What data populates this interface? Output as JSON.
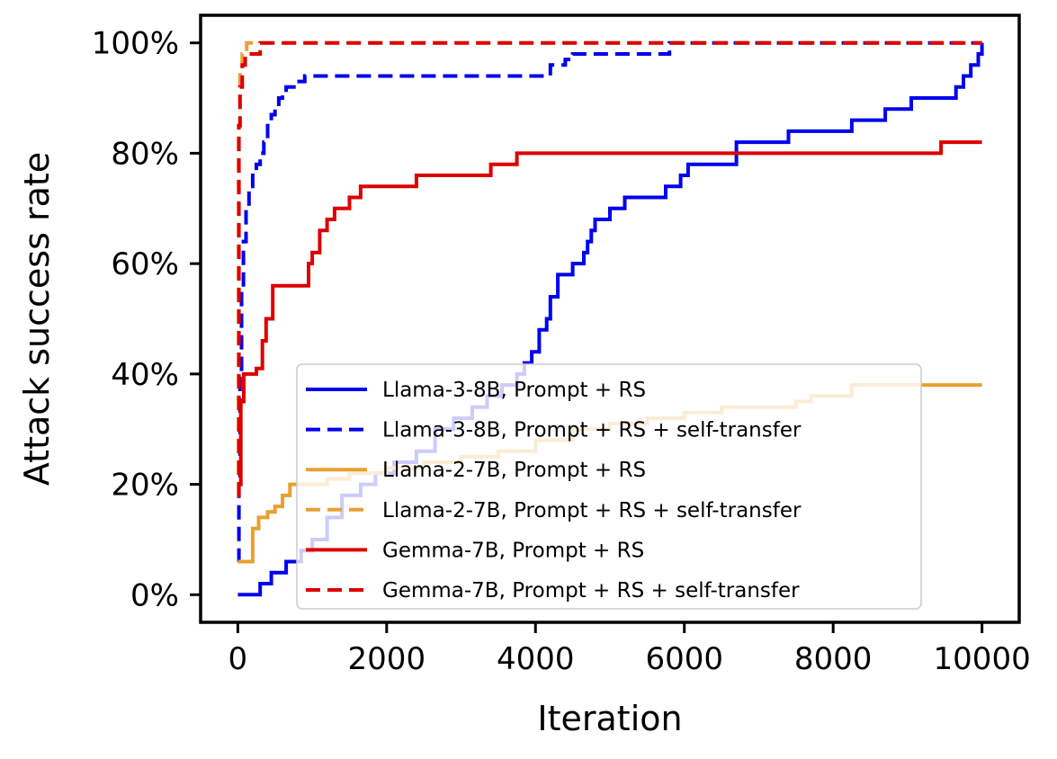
{
  "chart_data": {
    "type": "line",
    "xlabel": "Iteration",
    "ylabel": "Attack success rate",
    "xlim": [
      -500,
      10500
    ],
    "ylim": [
      -0.05,
      1.05
    ],
    "x_ticks": [
      0,
      2000,
      4000,
      6000,
      8000,
      10000
    ],
    "x_tick_labels": [
      "0",
      "2000",
      "4000",
      "6000",
      "8000",
      "10000"
    ],
    "y_ticks": [
      0,
      0.2,
      0.4,
      0.6,
      0.8,
      1.0
    ],
    "y_tick_labels": [
      "0%",
      "20%",
      "40%",
      "60%",
      "80%",
      "100%"
    ],
    "grid": false,
    "legend": {
      "placement": "lower-right",
      "entries": [
        "Llama-3-8B, Prompt + RS",
        "Llama-3-8B, Prompt + RS + self-transfer",
        "Llama-2-7B, Prompt + RS",
        "Llama-2-7B, Prompt + RS + self-transfer",
        "Gemma-7B, Prompt + RS",
        "Gemma-7B, Prompt + RS + self-transfer"
      ]
    },
    "series": [
      {
        "name": "Llama-3-8B, Prompt + RS",
        "color": "#0000ee",
        "dash": "solid",
        "x": [
          0,
          300,
          450,
          650,
          850,
          1000,
          1200,
          1400,
          1650,
          1850,
          2100,
          2400,
          2650,
          2900,
          3150,
          3350,
          3550,
          3750,
          3850,
          3950,
          4050,
          4150,
          4200,
          4300,
          4500,
          4650,
          4700,
          4750,
          4800,
          4900,
          5000,
          5200,
          5400,
          5750,
          5950,
          6050,
          6300,
          6700,
          6950,
          7400,
          7700,
          8000,
          8250,
          8500,
          8700,
          8900,
          9050,
          9200,
          9650,
          9750,
          9850,
          9950,
          10000
        ],
        "y": [
          0,
          0.02,
          0.04,
          0.06,
          0.08,
          0.1,
          0.14,
          0.18,
          0.2,
          0.22,
          0.24,
          0.26,
          0.3,
          0.32,
          0.34,
          0.36,
          0.38,
          0.4,
          0.42,
          0.44,
          0.48,
          0.5,
          0.54,
          0.58,
          0.6,
          0.62,
          0.64,
          0.66,
          0.68,
          0.68,
          0.7,
          0.72,
          0.72,
          0.74,
          0.76,
          0.78,
          0.78,
          0.82,
          0.82,
          0.84,
          0.84,
          0.84,
          0.86,
          0.86,
          0.88,
          0.88,
          0.9,
          0.9,
          0.92,
          0.94,
          0.96,
          0.98,
          1.0
        ]
      },
      {
        "name": "Llama-3-8B, Prompt + RS + self-transfer",
        "color": "#0000ee",
        "dash": "dashed",
        "x": [
          0,
          15,
          30,
          50,
          75,
          110,
          150,
          200,
          250,
          300,
          350,
          400,
          450,
          500,
          550,
          600,
          650,
          700,
          800,
          900,
          1500,
          2500,
          3500,
          4100,
          4200,
          4400,
          4500,
          5000,
          5500,
          5700,
          5800,
          6500,
          8000,
          9500,
          10000
        ],
        "y": [
          0.06,
          0.2,
          0.4,
          0.55,
          0.64,
          0.7,
          0.74,
          0.76,
          0.78,
          0.8,
          0.82,
          0.85,
          0.87,
          0.88,
          0.9,
          0.91,
          0.92,
          0.92,
          0.93,
          0.94,
          0.94,
          0.94,
          0.94,
          0.94,
          0.96,
          0.97,
          0.98,
          0.98,
          0.98,
          0.98,
          1.0,
          1.0,
          1.0,
          1.0,
          1.0
        ]
      },
      {
        "name": "Llama-2-7B, Prompt + RS",
        "color": "#e8a030",
        "dash": "solid",
        "x": [
          0,
          200,
          280,
          400,
          500,
          600,
          700,
          900,
          1200,
          1500,
          2000,
          2500,
          3000,
          3500,
          4000,
          4500,
          5000,
          5500,
          6000,
          6500,
          7000,
          7500,
          7700,
          8000,
          8250,
          8500,
          9000,
          9500,
          10000
        ],
        "y": [
          0.06,
          0.12,
          0.14,
          0.15,
          0.16,
          0.18,
          0.2,
          0.2,
          0.21,
          0.22,
          0.23,
          0.24,
          0.25,
          0.26,
          0.28,
          0.3,
          0.31,
          0.32,
          0.33,
          0.34,
          0.34,
          0.35,
          0.36,
          0.36,
          0.38,
          0.38,
          0.38,
          0.38,
          0.38
        ]
      },
      {
        "name": "Llama-2-7B, Prompt + RS + self-transfer",
        "color": "#e8a030",
        "dash": "dashed",
        "x": [
          0,
          10,
          30,
          60,
          120,
          250,
          1000,
          3000,
          6000,
          10000
        ],
        "y": [
          0.18,
          0.85,
          0.95,
          0.98,
          1.0,
          1.0,
          1.0,
          1.0,
          1.0,
          1.0
        ]
      },
      {
        "name": "Gemma-7B, Prompt + RS",
        "color": "#dd0000",
        "dash": "solid",
        "x": [
          0,
          40,
          80,
          150,
          250,
          330,
          380,
          470,
          900,
          950,
          1000,
          1100,
          1200,
          1300,
          1400,
          1500,
          1650,
          2000,
          2400,
          2700,
          3000,
          3350,
          3400,
          3700,
          3750,
          4000,
          5000,
          6000,
          7000,
          8000,
          9000,
          9400,
          9450,
          10000
        ],
        "y": [
          0.2,
          0.35,
          0.4,
          0.4,
          0.41,
          0.46,
          0.5,
          0.56,
          0.56,
          0.6,
          0.62,
          0.66,
          0.68,
          0.7,
          0.7,
          0.72,
          0.74,
          0.74,
          0.76,
          0.76,
          0.76,
          0.76,
          0.78,
          0.78,
          0.8,
          0.8,
          0.8,
          0.8,
          0.8,
          0.8,
          0.8,
          0.8,
          0.82,
          0.82
        ]
      },
      {
        "name": "Gemma-7B, Prompt + RS + self-transfer",
        "color": "#dd0000",
        "dash": "dashed",
        "x": [
          0,
          15,
          30,
          60,
          100,
          250,
          300,
          400,
          1000,
          3000,
          6000,
          10000
        ],
        "y": [
          0.18,
          0.85,
          0.92,
          0.96,
          0.98,
          0.98,
          1.0,
          1.0,
          1.0,
          1.0,
          1.0,
          1.0
        ]
      }
    ]
  }
}
